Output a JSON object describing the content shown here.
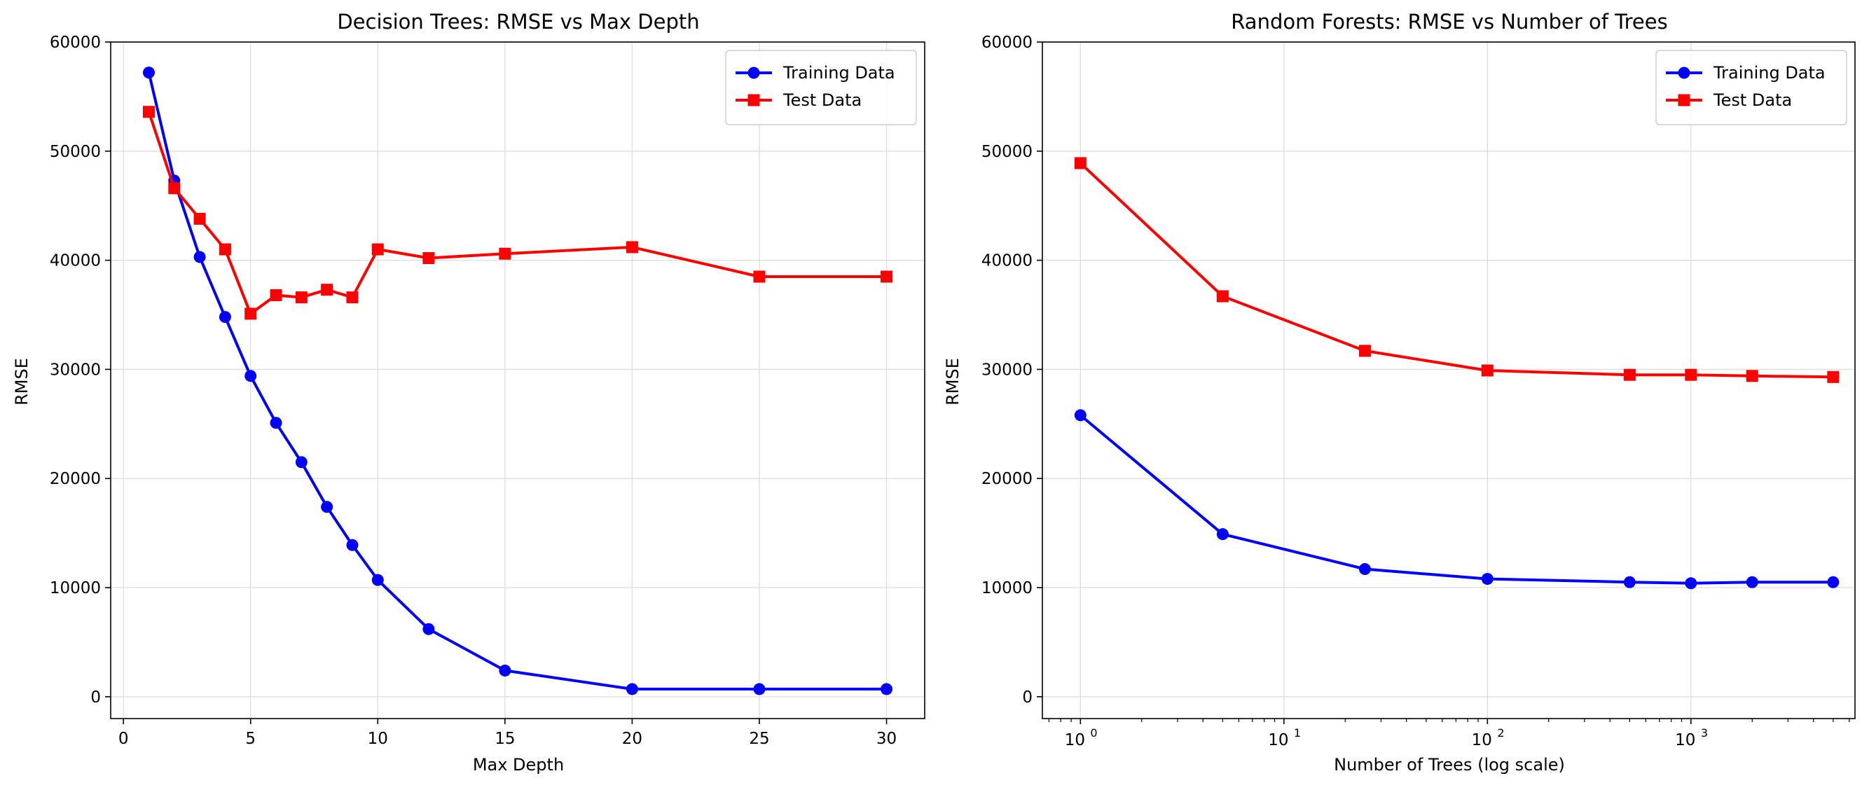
{
  "chart_data": [
    {
      "type": "line",
      "title": "Decision Trees: RMSE vs Max Depth",
      "xlabel": "Max Depth",
      "ylabel": "RMSE",
      "xscale": "linear",
      "xlim": [
        -0.5,
        31.5
      ],
      "ylim": [
        -2000,
        60000
      ],
      "xticks": [
        0,
        5,
        10,
        15,
        20,
        25,
        30
      ],
      "xtick_labels": [
        "0",
        "5",
        "10",
        "15",
        "20",
        "25",
        "30"
      ],
      "yticks": [
        0,
        10000,
        20000,
        30000,
        40000,
        50000,
        60000
      ],
      "ytick_labels": [
        "0",
        "10000",
        "20000",
        "30000",
        "40000",
        "50000",
        "60000"
      ],
      "grid": true,
      "legend": "top-right",
      "x": [
        1,
        2,
        3,
        4,
        5,
        6,
        7,
        8,
        9,
        10,
        12,
        15,
        20,
        25,
        30
      ],
      "series": [
        {
          "name": "Training Data",
          "color": "#0000ff",
          "marker": "circle",
          "values": [
            57200,
            47300,
            40300,
            34800,
            29400,
            25100,
            21500,
            17400,
            13900,
            10700,
            6200,
            2400,
            700,
            700,
            700
          ]
        },
        {
          "name": "Test Data",
          "color": "#ff0000",
          "marker": "square",
          "values": [
            53600,
            46600,
            43800,
            41000,
            35100,
            36800,
            36600,
            37300,
            36600,
            41000,
            40200,
            40600,
            41200,
            38500,
            38500
          ]
        }
      ]
    },
    {
      "type": "line",
      "title": "Random Forests: RMSE vs Number of Trees",
      "xlabel": "Number of Trees (log scale)",
      "ylabel": "RMSE",
      "xscale": "log",
      "xlim": [
        0.65,
        6400
      ],
      "ylim": [
        -2000,
        60000
      ],
      "xticks": [
        1,
        10,
        100,
        1000
      ],
      "xtick_labels": [
        [
          "10",
          "0"
        ],
        [
          "10",
          "1"
        ],
        [
          "10",
          "2"
        ],
        [
          "10",
          "3"
        ]
      ],
      "yticks": [
        0,
        10000,
        20000,
        30000,
        40000,
        50000,
        60000
      ],
      "ytick_labels": [
        "0",
        "10000",
        "20000",
        "30000",
        "40000",
        "50000",
        "60000"
      ],
      "grid": true,
      "legend": "top-right",
      "x": [
        1,
        5,
        25,
        100,
        500,
        1000,
        2000,
        5000
      ],
      "series": [
        {
          "name": "Training Data",
          "color": "#0000ff",
          "marker": "circle",
          "values": [
            25800,
            14900,
            11700,
            10800,
            10500,
            10400,
            10500,
            10500
          ]
        },
        {
          "name": "Test Data",
          "color": "#ff0000",
          "marker": "square",
          "values": [
            48900,
            36700,
            31700,
            29900,
            29500,
            29500,
            29400,
            29300
          ]
        }
      ]
    }
  ]
}
